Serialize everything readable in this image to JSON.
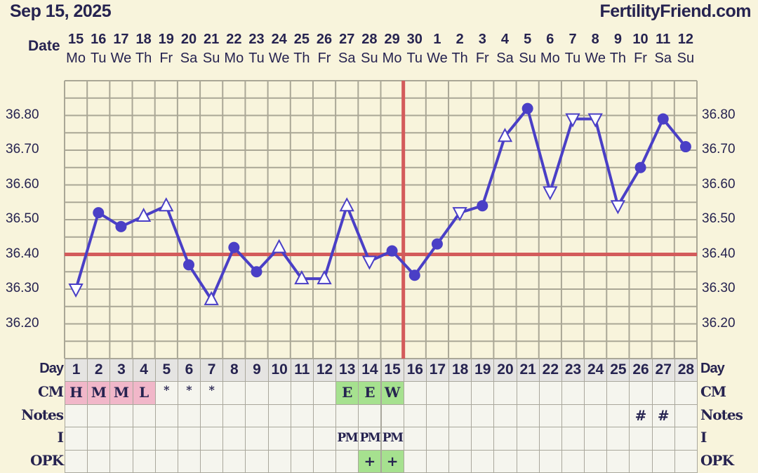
{
  "header": {
    "date": "Sep 15, 2025",
    "brand": "FertilityFriend.com",
    "date_row_label": "Date"
  },
  "columns": {
    "dates": [
      "15",
      "16",
      "17",
      "18",
      "19",
      "20",
      "21",
      "22",
      "23",
      "24",
      "25",
      "26",
      "27",
      "28",
      "29",
      "30",
      "1",
      "2",
      "3",
      "4",
      "5",
      "6",
      "7",
      "8",
      "9",
      "10",
      "11",
      "12"
    ],
    "weekdays": [
      "Mo",
      "Tu",
      "We",
      "Th",
      "Fr",
      "Sa",
      "Su",
      "Mo",
      "Tu",
      "We",
      "Th",
      "Fr",
      "Sa",
      "Su",
      "Mo",
      "Tu",
      "We",
      "Th",
      "Fr",
      "Sa",
      "Su",
      "Mo",
      "Tu",
      "We",
      "Th",
      "Fr",
      "Sa",
      "Su"
    ]
  },
  "rows": {
    "labels": {
      "day": "Day",
      "cm": "CM",
      "notes": "Notes",
      "i": "I",
      "opk": "OPK"
    },
    "day": [
      "1",
      "2",
      "3",
      "4",
      "5",
      "6",
      "7",
      "8",
      "9",
      "10",
      "11",
      "12",
      "13",
      "14",
      "15",
      "16",
      "17",
      "18",
      "19",
      "20",
      "21",
      "22",
      "23",
      "24",
      "25",
      "26",
      "27",
      "28"
    ],
    "cm": [
      "H",
      "M",
      "M",
      "L",
      "*",
      "*",
      "*",
      "",
      "",
      "",
      "",
      "",
      "E",
      "E",
      "W",
      "",
      "",
      "",
      "",
      "",
      "",
      "",
      "",
      "",
      "",
      "",
      "",
      ""
    ],
    "cm_colors": [
      "pink",
      "pink",
      "pink",
      "pink",
      "",
      "",
      "",
      "",
      "",
      "",
      "",
      "",
      "green",
      "green",
      "green",
      "",
      "",
      "",
      "",
      "",
      "",
      "",
      "",
      "",
      "",
      "",
      "",
      ""
    ],
    "notes": [
      "",
      "",
      "",
      "",
      "",
      "",
      "",
      "",
      "",
      "",
      "",
      "",
      "",
      "",
      "",
      "",
      "",
      "",
      "",
      "",
      "",
      "",
      "",
      "",
      "",
      "#",
      "#",
      ""
    ],
    "i": [
      "",
      "",
      "",
      "",
      "",
      "",
      "",
      "",
      "",
      "",
      "",
      "",
      "PM",
      "PM",
      "PM",
      "",
      "",
      "",
      "",
      "",
      "",
      "",
      "",
      "",
      "",
      "",
      "",
      ""
    ],
    "opk": [
      "",
      "",
      "",
      "",
      "",
      "",
      "",
      "",
      "",
      "",
      "",
      "",
      "",
      "+",
      "+",
      "",
      "",
      "",
      "",
      "",
      "",
      "",
      "",
      "",
      "",
      "",
      "",
      ""
    ],
    "opk_colors": [
      "",
      "",
      "",
      "",
      "",
      "",
      "",
      "",
      "",
      "",
      "",
      "",
      "",
      "green",
      "green",
      "",
      "",
      "",
      "",
      "",
      "",
      "",
      "",
      "",
      "",
      "",
      "",
      ""
    ]
  },
  "colors": {
    "line": "#4a3fc6",
    "coverline": "#d35b5b",
    "pink": "#f1b7c9",
    "green": "#a6e18f",
    "grid": "#aaa796",
    "background": "#f8f4dc"
  },
  "chart_data": {
    "type": "line",
    "x": [
      1,
      2,
      3,
      4,
      5,
      6,
      7,
      8,
      9,
      10,
      11,
      12,
      13,
      14,
      15,
      16,
      17,
      18,
      19,
      20,
      21,
      22,
      23,
      24,
      25,
      26,
      27,
      28
    ],
    "values": [
      36.3,
      36.52,
      36.48,
      36.51,
      36.54,
      36.37,
      36.27,
      36.42,
      36.35,
      36.42,
      36.33,
      36.33,
      36.54,
      36.38,
      36.41,
      36.34,
      36.43,
      36.52,
      36.54,
      36.74,
      36.82,
      36.58,
      36.79,
      36.79,
      36.54,
      36.65,
      36.79,
      36.71
    ],
    "markers": [
      "tri-down",
      "circle",
      "circle",
      "tri-up",
      "tri-up",
      "circle",
      "tri-up",
      "circle",
      "circle",
      "tri-up",
      "tri-up",
      "tri-up",
      "tri-up",
      "tri-down",
      "circle",
      "circle",
      "circle",
      "tri-down",
      "circle",
      "tri-up",
      "circle",
      "tri-down",
      "tri-down",
      "tri-down",
      "tri-down",
      "circle",
      "circle",
      "circle"
    ],
    "ylim": [
      36.1,
      36.9
    ],
    "yticks": [
      "36.80",
      "36.70",
      "36.60",
      "36.50",
      "36.40",
      "36.30",
      "36.20"
    ],
    "coverline": 36.4,
    "ovulation_day": 16,
    "grid": true
  }
}
